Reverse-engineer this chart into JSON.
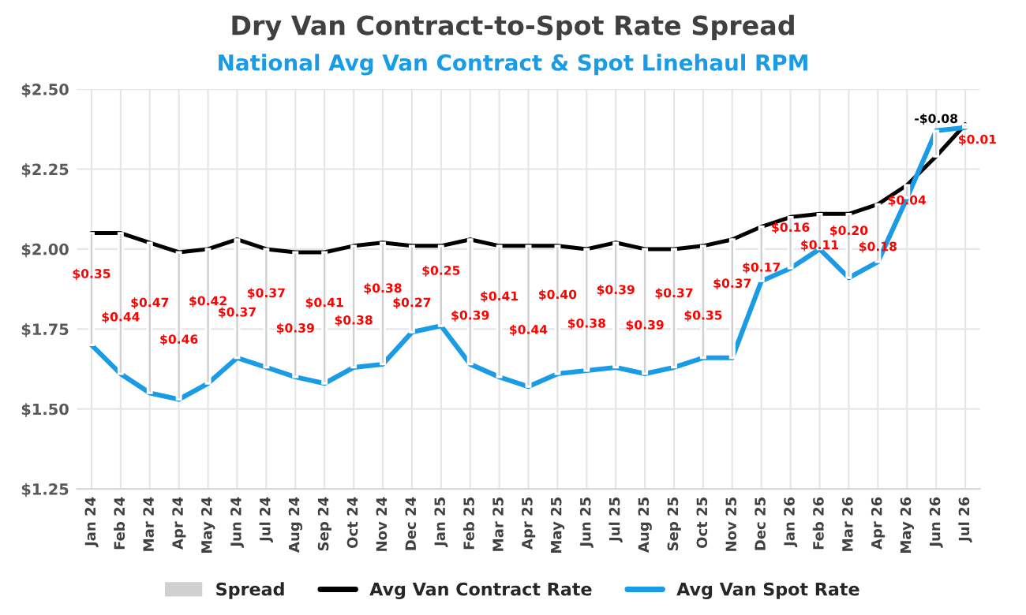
{
  "chart_data": {
    "type": "line",
    "title": "Dry Van Contract-to-Spot Rate Spread",
    "subtitle": "National Avg Van Contract & Spot Linehaul RPM",
    "categories": [
      "Jan 24",
      "Feb 24",
      "Mar 24",
      "Apr 24",
      "May 24",
      "Jun 24",
      "Jul 24",
      "Aug 24",
      "Sep 24",
      "Oct 24",
      "Nov 24",
      "Dec 24",
      "Jan 25",
      "Feb 25",
      "Mar 25",
      "Apr 25",
      "May 25",
      "Jun 25",
      "Jul 25",
      "Aug 25",
      "Sep 25",
      "Oct 25",
      "Nov 25",
      "Dec 25",
      "Jan 26",
      "Feb 26",
      "Mar 26",
      "Apr 26",
      "May 26",
      "Jun 26",
      "Jul 26"
    ],
    "series": [
      {
        "name": "Spread",
        "type": "bar",
        "color": "#d0d0d0",
        "base": [
          1.7,
          1.61,
          1.55,
          1.53,
          1.58,
          1.66,
          1.63,
          1.6,
          1.58,
          1.63,
          1.64,
          1.74,
          1.76,
          1.64,
          1.6,
          1.57,
          1.61,
          1.62,
          1.63,
          1.61,
          1.63,
          1.66,
          1.66,
          1.9,
          1.94,
          2.0,
          1.91,
          1.96,
          2.16,
          2.37,
          2.38
        ],
        "values": [
          0.35,
          0.44,
          0.47,
          0.46,
          0.42,
          0.37,
          0.37,
          0.39,
          0.41,
          0.38,
          0.38,
          0.27,
          0.25,
          0.39,
          0.41,
          0.44,
          0.4,
          0.38,
          0.39,
          0.39,
          0.37,
          0.35,
          0.37,
          0.17,
          0.16,
          0.11,
          0.2,
          0.18,
          0.04,
          -0.08,
          0.01
        ],
        "value_labels": [
          "$0.35",
          "$0.44",
          "$0.47",
          "$0.46",
          "$0.42",
          "$0.37",
          "$0.37",
          "$0.39",
          "$0.41",
          "$0.38",
          "$0.38",
          "$0.27",
          "$0.25",
          "$0.39",
          "$0.41",
          "$0.44",
          "$0.40",
          "$0.38",
          "$0.39",
          "$0.39",
          "$0.37",
          "$0.35",
          "$0.37",
          "$0.17",
          "$0.16",
          "$0.11",
          "$0.20",
          "$0.18",
          "$0.04",
          "-$0.08",
          "$0.01"
        ]
      },
      {
        "name": "Avg Van Contract Rate",
        "color": "#000000",
        "values": [
          2.05,
          2.05,
          2.02,
          1.99,
          2.0,
          2.03,
          2.0,
          1.99,
          1.99,
          2.01,
          2.02,
          2.01,
          2.01,
          2.03,
          2.01,
          2.01,
          2.01,
          2.0,
          2.02,
          2.0,
          2.0,
          2.01,
          2.03,
          2.07,
          2.1,
          2.11,
          2.11,
          2.14,
          2.2,
          2.29,
          2.39
        ]
      },
      {
        "name": "Avg Van Spot Rate",
        "color": "#1a9be6",
        "values": [
          1.7,
          1.61,
          1.55,
          1.53,
          1.58,
          1.66,
          1.63,
          1.6,
          1.58,
          1.63,
          1.64,
          1.74,
          1.76,
          1.64,
          1.6,
          1.57,
          1.61,
          1.62,
          1.63,
          1.61,
          1.63,
          1.66,
          1.66,
          1.9,
          1.94,
          2.0,
          1.91,
          1.96,
          2.16,
          2.37,
          2.38
        ]
      }
    ],
    "ylim": [
      1.25,
      2.5
    ],
    "yticks": [
      {
        "value": 1.25,
        "label": "$1.25"
      },
      {
        "value": 1.5,
        "label": "$1.50"
      },
      {
        "value": 1.75,
        "label": "$1.75"
      },
      {
        "value": 2.0,
        "label": "$2.00"
      },
      {
        "value": 2.25,
        "label": "$2.25"
      },
      {
        "value": 2.5,
        "label": "$2.50"
      }
    ],
    "grid": true,
    "legend": "bottom"
  }
}
